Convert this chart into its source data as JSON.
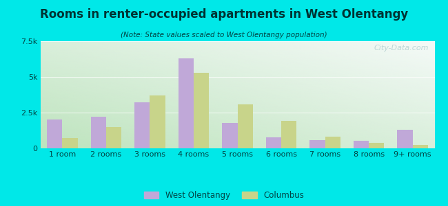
{
  "title": "Rooms in renter-occupied apartments in West Olentangy",
  "subtitle": "(Note: State values scaled to West Olentangy population)",
  "categories": [
    "1 room",
    "2 rooms",
    "3 rooms",
    "4 rooms",
    "5 rooms",
    "6 rooms",
    "7 rooms",
    "8 rooms",
    "9+ rooms"
  ],
  "west_olentangy": [
    2000,
    2200,
    3200,
    6300,
    1800,
    750,
    600,
    550,
    1300
  ],
  "columbus": [
    700,
    1500,
    3700,
    5300,
    3100,
    1900,
    800,
    400,
    250
  ],
  "bar_color_wo": "#c0a8d8",
  "bar_color_col": "#c8d48a",
  "background_outer": "#00e8e8",
  "ylim": [
    0,
    7500
  ],
  "yticks": [
    0,
    2500,
    5000,
    7500
  ],
  "ytick_labels": [
    "0",
    "2.5k",
    "5k",
    "7.5k"
  ],
  "legend_wo": "West Olentangy",
  "legend_col": "Columbus",
  "watermark": "City-Data.com",
  "title_color": "#003333",
  "subtitle_color": "#004444",
  "tick_color": "#004444"
}
